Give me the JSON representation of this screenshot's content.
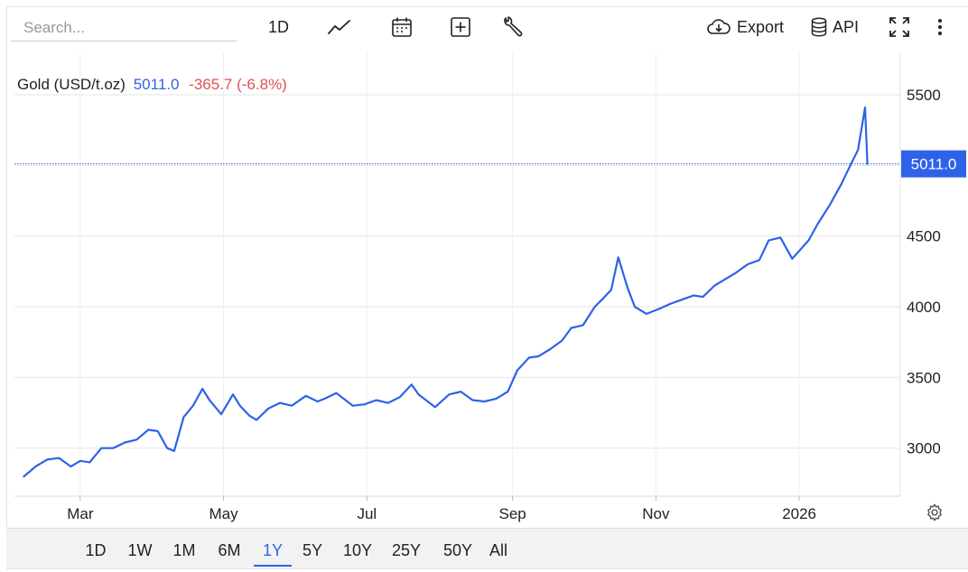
{
  "search": {
    "placeholder": "Search..."
  },
  "toolbar": {
    "interval_label": "1D",
    "export_label": "Export",
    "api_label": "API"
  },
  "legend": {
    "name": "Gold (USD/t.oz)",
    "value": "5011.0",
    "change": "-365.7 (-6.8%)"
  },
  "price_tag": "5011.0",
  "range_buttons": [
    "1D",
    "1W",
    "1M",
    "6M",
    "1Y",
    "5Y",
    "10Y",
    "25Y",
    "50Y",
    "All"
  ],
  "active_range": "1Y",
  "colors": {
    "line": "#2e62e8",
    "negative": "#e05252",
    "grid": "#e6e6e6"
  },
  "chart_data": {
    "type": "line",
    "title": "",
    "xlabel": "",
    "ylabel": "",
    "grid": true,
    "y_axis_position": "right",
    "ylim": [
      2660,
      5800
    ],
    "xlim": [
      "2025-02-01",
      "2026-02-13"
    ],
    "yticks": [
      3000,
      3500,
      4000,
      4500,
      5000,
      5500
    ],
    "ytick_labels": [
      "3000",
      "3500",
      "4000",
      "4500",
      "",
      "5500"
    ],
    "xticks": [
      {
        "date": "2025-03-01",
        "label": "Mar"
      },
      {
        "date": "2025-05-01",
        "label": "May"
      },
      {
        "date": "2025-07-01",
        "label": "Jul"
      },
      {
        "date": "2025-09-01",
        "label": "Sep"
      },
      {
        "date": "2025-11-01",
        "label": "Nov"
      },
      {
        "date": "2026-01-01",
        "label": "2026"
      }
    ],
    "last_value": 5011.0,
    "series": [
      {
        "x": [
          "2025-02-05",
          "2025-02-10",
          "2025-02-15",
          "2025-02-20",
          "2025-02-25",
          "2025-03-01",
          "2025-03-05",
          "2025-03-10",
          "2025-03-15",
          "2025-03-20",
          "2025-03-25",
          "2025-03-30",
          "2025-04-03",
          "2025-04-07",
          "2025-04-10",
          "2025-04-14",
          "2025-04-18",
          "2025-04-22",
          "2025-04-25",
          "2025-04-30",
          "2025-05-05",
          "2025-05-08",
          "2025-05-12",
          "2025-05-15",
          "2025-05-20",
          "2025-05-25",
          "2025-05-30",
          "2025-06-05",
          "2025-06-10",
          "2025-06-13",
          "2025-06-18",
          "2025-06-25",
          "2025-06-30",
          "2025-07-05",
          "2025-07-10",
          "2025-07-15",
          "2025-07-20",
          "2025-07-23",
          "2025-07-30",
          "2025-08-05",
          "2025-08-10",
          "2025-08-15",
          "2025-08-20",
          "2025-08-25",
          "2025-08-30",
          "2025-09-03",
          "2025-09-08",
          "2025-09-12",
          "2025-09-17",
          "2025-09-22",
          "2025-09-26",
          "2025-10-01",
          "2025-10-06",
          "2025-10-09",
          "2025-10-13",
          "2025-10-16",
          "2025-10-20",
          "2025-10-23",
          "2025-10-28",
          "2025-11-03",
          "2025-11-07",
          "2025-11-12",
          "2025-11-17",
          "2025-11-21",
          "2025-11-26",
          "2025-12-01",
          "2025-12-05",
          "2025-12-10",
          "2025-12-15",
          "2025-12-19",
          "2025-12-24",
          "2025-12-29",
          "2026-01-05",
          "2026-01-09",
          "2026-01-14",
          "2026-01-19",
          "2026-01-23",
          "2026-01-26",
          "2026-01-29",
          "2026-01-30"
        ],
        "values": [
          2800,
          2870,
          2920,
          2930,
          2870,
          2910,
          2900,
          3000,
          3000,
          3040,
          3060,
          3130,
          3120,
          3000,
          2980,
          3220,
          3300,
          3420,
          3340,
          3240,
          3380,
          3300,
          3230,
          3200,
          3280,
          3320,
          3300,
          3370,
          3330,
          3350,
          3390,
          3300,
          3310,
          3340,
          3320,
          3360,
          3450,
          3380,
          3290,
          3380,
          3400,
          3340,
          3330,
          3350,
          3400,
          3550,
          3640,
          3650,
          3700,
          3760,
          3850,
          3870,
          4000,
          4050,
          4120,
          4350,
          4130,
          4000,
          3950,
          3990,
          4020,
          4050,
          4080,
          4070,
          4150,
          4200,
          4240,
          4300,
          4330,
          4470,
          4490,
          4340,
          4470,
          4590,
          4720,
          4870,
          5010,
          5110,
          5410,
          5011
        ]
      }
    ]
  }
}
